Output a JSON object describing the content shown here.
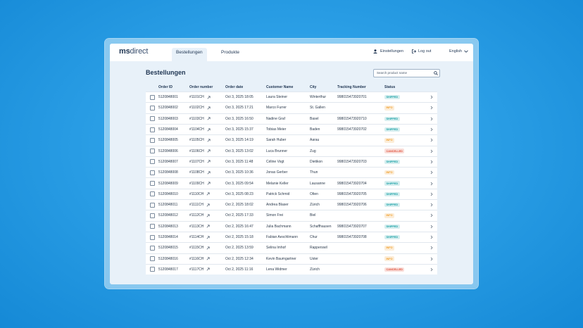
{
  "header": {
    "logo_prefix": "ms",
    "logo_suffix": "direct",
    "tabs": [
      "Bestellungen",
      "Produkte"
    ],
    "active_tab": 0,
    "settings": "Einstellungen",
    "logout": "Log out",
    "language": "English"
  },
  "page": {
    "title": "Bestellungen",
    "search_placeholder": "Search product name"
  },
  "table": {
    "columns": [
      "Order ID",
      "Order number",
      "Order date",
      "Customer Name",
      "City",
      "Tracking Number",
      "Status"
    ],
    "rows": [
      {
        "cells": [
          "5120848001",
          "#1101CH",
          "Oct 3, 2025 18:05",
          "Laura Steiner",
          "Winterthur",
          "998015473920701",
          "SHIPPED"
        ],
        "status_color": "#1fa3a8"
      },
      {
        "cells": [
          "5120848002",
          "#1102CH",
          "Oct 3, 2025 17:21",
          "Marco Furrer",
          "St. Gallen",
          null,
          "INFO"
        ],
        "status_color": "#f0a030"
      },
      {
        "cells": [
          "5120848003",
          "#1103CH",
          "Oct 3, 2025 16:50",
          "Nadine Graf",
          "Basel",
          "998015473920710",
          "SHIPPED"
        ],
        "status_color": "#1fa3a8"
      },
      {
        "cells": [
          "5120848004",
          "#1104CH",
          "Oct 3, 2025 15:37",
          "Tobias Meier",
          "Baden",
          "998015473920702",
          "SHIPPED"
        ],
        "status_color": "#1fa3a8"
      },
      {
        "cells": [
          "5120848005",
          "#1105CH",
          "Oct 3, 2025 14:19",
          "Sarah Huber",
          "Aarau",
          null,
          "INFO"
        ],
        "status_color": "#f0a030"
      },
      {
        "cells": [
          "5120848006",
          "#1106CH",
          "Oct 3, 2025 13:02",
          "Luca Brunner",
          "Zug",
          null,
          "CANCELLED"
        ],
        "status_color": "#e0503a"
      },
      {
        "cells": [
          "5120848007",
          "#1107CH",
          "Oct 3, 2025 11:48",
          "Céline Vogt",
          "Dietikon",
          "998015473920703",
          "SHIPPED"
        ],
        "status_color": "#1fa3a8"
      },
      {
        "cells": [
          "5120848008",
          "#1108CH",
          "Oct 3, 2025 10:36",
          "Jonas Gerber",
          "Thun",
          null,
          "INFO"
        ],
        "status_color": "#f0a030"
      },
      {
        "cells": [
          "5120848009",
          "#1109CH",
          "Oct 3, 2025 09:54",
          "Melanie Keller",
          "Lausanne",
          "998015473920704",
          "SHIPPED"
        ],
        "status_color": "#1fa3a8"
      },
      {
        "cells": [
          "5120848010",
          "#1110CH",
          "Oct 3, 2025 08:23",
          "Patrick Schmid",
          "Olten",
          "998015473920705",
          "SHIPPED"
        ],
        "status_color": "#1fa3a8"
      },
      {
        "cells": [
          "5120848011",
          "#1111CH",
          "Oct 2, 2025 18:02",
          "Andrea Blaser",
          "Zürich",
          "998015473920706",
          "SHIPPED"
        ],
        "status_color": "#1fa3a8"
      },
      {
        "cells": [
          "5120848012",
          "#1112CH",
          "Oct 2, 2025 17:33",
          "Simon Frei",
          "Biel",
          null,
          "INFO"
        ],
        "status_color": "#f0a030"
      },
      {
        "cells": [
          "5120848013",
          "#1113CH",
          "Oct 2, 2025 16:47",
          "Julia Bachmann",
          "Schaffhausen",
          "998015473920707",
          "SHIPPED"
        ],
        "status_color": "#1fa3a8"
      },
      {
        "cells": [
          "5120848014",
          "#1114CH",
          "Oct 2, 2025 15:18",
          "Fabian Aeschlimann",
          "Chur",
          "998015473920708",
          "SHIPPED"
        ],
        "status_color": "#1fa3a8"
      },
      {
        "cells": [
          "5120848015",
          "#1115CH",
          "Oct 2, 2025 13:59",
          "Selina Imhof",
          "Rapperswil",
          null,
          "INFO"
        ],
        "status_color": "#f0a030"
      },
      {
        "cells": [
          "5120848016",
          "#1116CH",
          "Oct 2, 2025 12:34",
          "Kevin Baumgartner",
          "Uster",
          null,
          "INFO"
        ],
        "status_color": "#f0a030"
      },
      {
        "cells": [
          "5120848017",
          "#1117CH",
          "Oct 2, 2025 11:16",
          "Lena Widmer",
          "Zürich",
          null,
          "CANCELLED"
        ],
        "status_color": "#e0503a"
      }
    ]
  }
}
